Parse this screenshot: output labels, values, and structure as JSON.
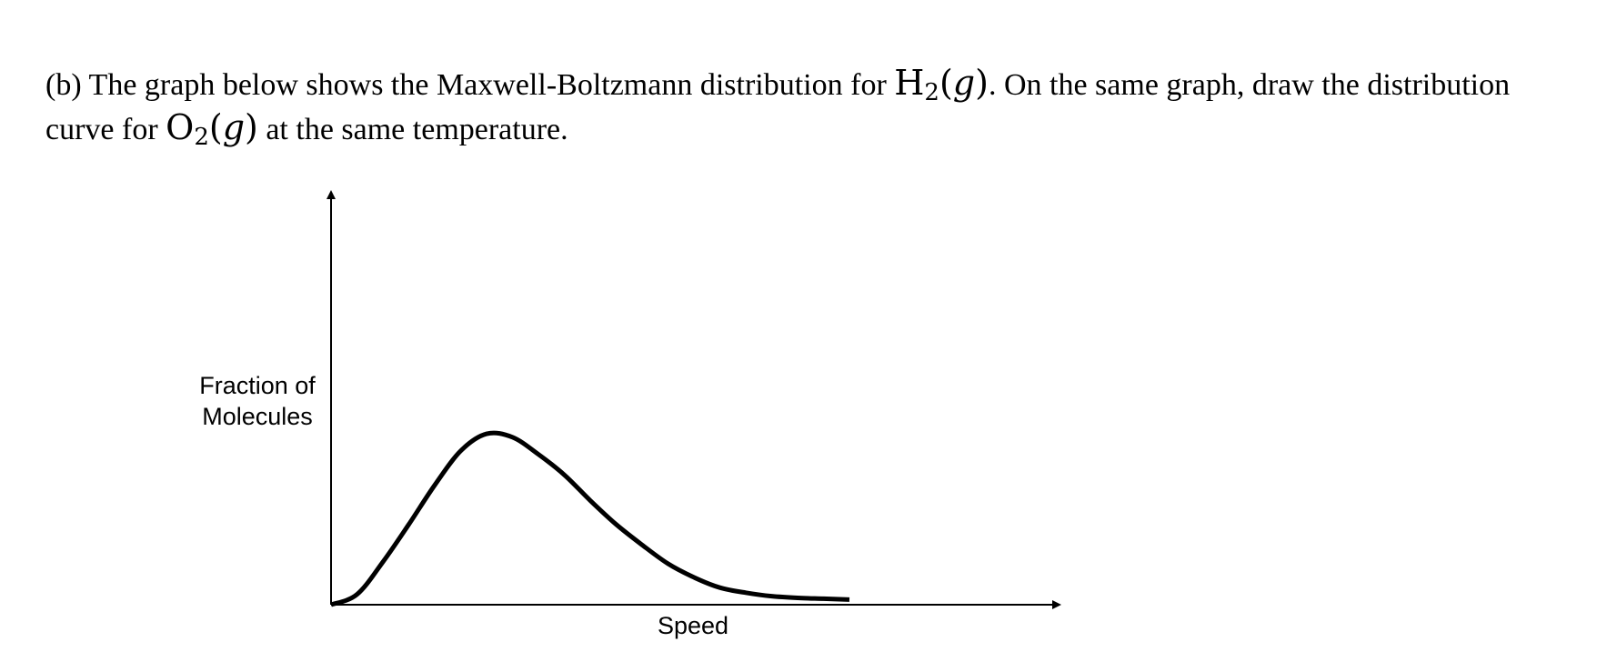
{
  "question": {
    "part": "(b)",
    "text_before_h2": "The graph below shows the Maxwell-Boltzmann distribution for",
    "h2_symbol": "H",
    "h2_subscript": "2",
    "h2_state": "g",
    "text_after_h2": ". On the same graph, draw the distribution curve for",
    "o2_symbol": "O",
    "o2_subscript": "2",
    "o2_state": "g",
    "text_end": "at the same temperature."
  },
  "chart_data": {
    "type": "line",
    "title": "",
    "xlabel": "Speed",
    "ylabel_line1": "Fraction of",
    "ylabel_line2": "Molecules",
    "grid": false,
    "axis_ticks": false,
    "series": [
      {
        "x": [
          0,
          10,
          20,
          30,
          40,
          50,
          60,
          70,
          80,
          90,
          100,
          110,
          120,
          130,
          140,
          150,
          160,
          170,
          180,
          190,
          200
        ],
        "y": [
          0,
          0.06,
          0.25,
          0.47,
          0.7,
          0.9,
          1.0,
          0.98,
          0.88,
          0.76,
          0.61,
          0.47,
          0.35,
          0.24,
          0.16,
          0.1,
          0.07,
          0.05,
          0.04,
          0.035,
          0.03
        ],
        "color": "#000000"
      }
    ],
    "xlim": [
      0,
      280
    ],
    "ylim": [
      0,
      2.4
    ]
  }
}
